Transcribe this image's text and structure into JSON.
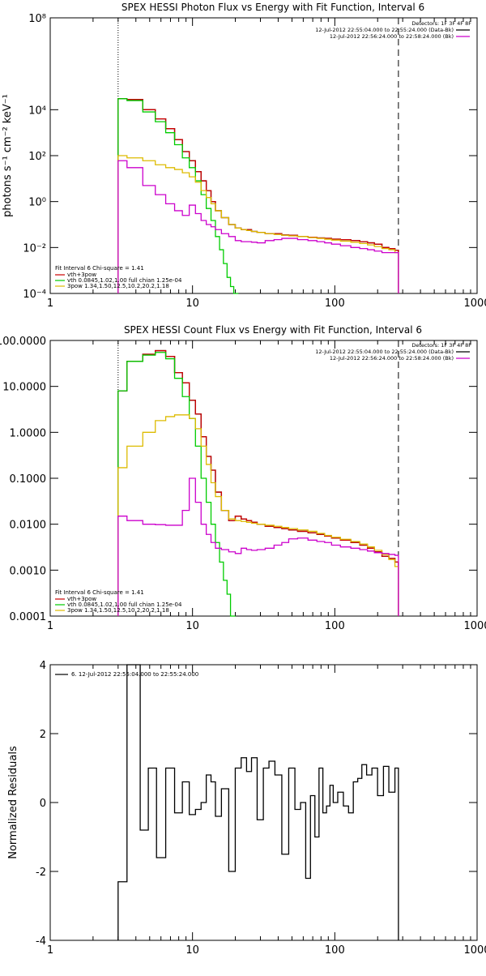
{
  "chart_data": [
    {
      "type": "line",
      "title": "SPEX HESSI Photon Flux vs Energy with Fit Function, Interval 6",
      "xlabel": "",
      "ylabel": "photons s⁻¹ cm⁻² keV⁻¹",
      "xscale": "log",
      "yscale": "log",
      "xlim": [
        1,
        1000
      ],
      "ylim": [
        0.0001,
        100000000
      ],
      "x_ticks": [
        1,
        10,
        100,
        1000
      ],
      "x_tick_labels": [
        "1",
        "10",
        "100",
        "1000"
      ],
      "y_ticks": [
        0.0001,
        0.01,
        1,
        100,
        10000,
        100000000
      ],
      "y_tick_labels": [
        "10⁻⁴",
        "10⁻²",
        "10⁰",
        "10²",
        "10⁴",
        "10⁸"
      ],
      "vlines": [
        {
          "x": 3.0,
          "style": "dotted"
        },
        {
          "x": 280,
          "style": "dashed"
        }
      ],
      "annotations": [
        "Detectors: 1F 3F 4F 8F",
        "12-Jul-2012 22:55:04.000 to 22:55:24.000 (Data-Bk)",
        "12-Jul-2012 22:56:24.000 to 22:58:24.000 (Bk)"
      ],
      "annotation_colors": [
        "#000000",
        "#000000",
        "#cc00cc"
      ],
      "legend": [
        "Fit Interval 6   Chi-square = 1.41",
        "vth+3pow",
        "vth 0.0845,1.02,1.00  full chian 1.25e-04",
        "3pow 1.34,1.50,12.5,10.2,20.2,1.18"
      ],
      "legend_colors": [
        "#000000",
        "#cc0000",
        "#00cc00",
        "#ddbb00"
      ],
      "legend_placement": "bottom-left",
      "series": [
        {
          "name": "Data-Bk",
          "color": "#000000",
          "x": [
            3,
            4,
            5,
            6,
            7,
            8,
            9,
            10,
            11,
            12,
            13,
            14,
            15,
            17,
            19,
            21,
            23,
            25,
            27,
            30,
            35,
            40,
            45,
            50,
            60,
            70,
            80,
            90,
            100,
            120,
            140,
            160,
            180,
            200,
            230,
            250,
            280
          ],
          "y": [
            30000,
            28000,
            10000,
            4000,
            1500,
            500,
            150,
            60,
            20,
            8,
            3,
            1,
            0.4,
            0.2,
            0.1,
            0.07,
            0.06,
            0.06,
            0.05,
            0.045,
            0.04,
            0.04,
            0.035,
            0.034,
            0.03,
            0.028,
            0.026,
            0.025,
            0.023,
            0.022,
            0.02,
            0.018,
            0.016,
            0.014,
            0.01,
            0.009,
            0.0075
          ]
        },
        {
          "name": "vth+3pow",
          "color": "#cc0000",
          "x": [
            3,
            4,
            5,
            6,
            7,
            8,
            9,
            10,
            11,
            12,
            13,
            14,
            15,
            17,
            19,
            21,
            23,
            25,
            27,
            30,
            35,
            40,
            45,
            50,
            60,
            70,
            80,
            90,
            100,
            120,
            140,
            160,
            180,
            200,
            230,
            250,
            280
          ],
          "y": [
            30000,
            28000,
            10000,
            4000,
            1500,
            500,
            150,
            60,
            20,
            8,
            3,
            1,
            0.4,
            0.2,
            0.1,
            0.07,
            0.06,
            0.06,
            0.05,
            0.045,
            0.04,
            0.04,
            0.035,
            0.034,
            0.03,
            0.028,
            0.026,
            0.025,
            0.023,
            0.022,
            0.02,
            0.018,
            0.016,
            0.014,
            0.01,
            0.009,
            0.0075
          ]
        },
        {
          "name": "vth",
          "color": "#00cc00",
          "x": [
            3,
            4,
            5,
            6,
            7,
            8,
            9,
            10,
            11,
            12,
            13,
            14,
            15,
            16,
            17,
            18,
            19,
            20,
            21
          ],
          "y": [
            30000,
            25000,
            8000,
            3000,
            1000,
            300,
            80,
            30,
            8,
            2,
            0.5,
            0.15,
            0.03,
            0.008,
            0.002,
            0.0005,
            0.0002,
            0.0001,
            0.0001
          ]
        },
        {
          "name": "3pow",
          "color": "#ddbb00",
          "x": [
            3,
            4,
            5,
            6,
            7,
            8,
            9,
            10,
            11,
            12,
            13,
            14,
            15,
            17,
            19,
            21,
            23,
            25,
            27,
            30,
            35,
            40,
            45,
            50,
            60,
            70,
            80,
            90,
            100,
            120,
            140,
            160,
            180,
            200,
            230,
            250,
            280
          ],
          "y": [
            100,
            80,
            60,
            40,
            30,
            25,
            18,
            12,
            7,
            3,
            1.5,
            0.8,
            0.4,
            0.2,
            0.1,
            0.07,
            0.06,
            0.055,
            0.05,
            0.045,
            0.04,
            0.037,
            0.034,
            0.032,
            0.03,
            0.027,
            0.025,
            0.023,
            0.021,
            0.019,
            0.017,
            0.015,
            0.013,
            0.011,
            0.009,
            0.008,
            0.006
          ]
        },
        {
          "name": "Bk",
          "color": "#cc00cc",
          "x": [
            3,
            4,
            5,
            6,
            7,
            8,
            9,
            10,
            11,
            12,
            13,
            14,
            15,
            17,
            19,
            21,
            23,
            25,
            27,
            30,
            35,
            40,
            45,
            50,
            60,
            70,
            80,
            90,
            100,
            120,
            140,
            160,
            180,
            200,
            230,
            250,
            280
          ],
          "y": [
            60,
            30,
            5,
            2,
            0.8,
            0.4,
            0.25,
            0.7,
            0.3,
            0.15,
            0.1,
            0.08,
            0.06,
            0.04,
            0.03,
            0.02,
            0.018,
            0.018,
            0.017,
            0.016,
            0.02,
            0.022,
            0.025,
            0.025,
            0.022,
            0.02,
            0.018,
            0.016,
            0.014,
            0.012,
            0.01,
            0.009,
            0.008,
            0.007,
            0.006,
            0.006,
            0.006
          ]
        }
      ]
    },
    {
      "type": "line",
      "title": "SPEX HESSI Count Flux vs Energy with Fit Function, Interval 6",
      "xlabel": "",
      "ylabel": "",
      "xscale": "log",
      "yscale": "log",
      "xlim": [
        1,
        1000
      ],
      "ylim": [
        0.0001,
        100
      ],
      "x_ticks": [
        1,
        10,
        100,
        1000
      ],
      "x_tick_labels": [
        "1",
        "10",
        "100",
        "1000"
      ],
      "y_ticks": [
        0.0001,
        0.001,
        0.01,
        0.1,
        1,
        10,
        100
      ],
      "y_tick_labels": [
        "0.0001",
        "0.0010",
        "0.0100",
        "0.1000",
        "1.0000",
        "10.0000",
        "100.0000"
      ],
      "vlines": [
        {
          "x": 3.0,
          "style": "dotted"
        },
        {
          "x": 280,
          "style": "dashed"
        }
      ],
      "annotations": [
        "Detectors: 1F 3F 4F 8F",
        "12-Jul-2012 22:55:04.000 to 22:55:24.000 (Data-Bk)",
        "12-Jul-2012 22:56:24.000 to 22:58:24.000 (Bk)"
      ],
      "annotation_colors": [
        "#000000",
        "#000000",
        "#cc00cc"
      ],
      "legend": [
        "Fit Interval 6   Chi-square = 1.41",
        "vth+3pow",
        "vth 0.0845,1.02,1.00  full chian 1.25e-04",
        "3pow 1.34,1.50,12.5,10.2,20.2,1.18"
      ],
      "legend_colors": [
        "#000000",
        "#cc0000",
        "#00cc00",
        "#ddbb00"
      ],
      "legend_placement": "bottom-left",
      "series": [
        {
          "name": "Data-Bk",
          "color": "#000000",
          "x": [
            3,
            4,
            5,
            6,
            7,
            8,
            9,
            10,
            11,
            12,
            13,
            14,
            15,
            17,
            19,
            21,
            23,
            25,
            27,
            30,
            35,
            40,
            45,
            50,
            60,
            70,
            80,
            90,
            100,
            120,
            140,
            160,
            180,
            200,
            230,
            250,
            280
          ],
          "y": [
            8,
            35,
            50,
            60,
            45,
            20,
            12,
            5,
            2.5,
            0.8,
            0.3,
            0.15,
            0.05,
            0.02,
            0.012,
            0.015,
            0.013,
            0.012,
            0.011,
            0.01,
            0.009,
            0.0085,
            0.008,
            0.0075,
            0.007,
            0.0065,
            0.006,
            0.0055,
            0.005,
            0.0045,
            0.004,
            0.0035,
            0.003,
            0.0025,
            0.002,
            0.0018,
            0.0015
          ]
        },
        {
          "name": "vth+3pow",
          "color": "#cc0000",
          "x": [
            3,
            4,
            5,
            6,
            7,
            8,
            9,
            10,
            11,
            12,
            13,
            14,
            15,
            17,
            19,
            21,
            23,
            25,
            27,
            30,
            35,
            40,
            45,
            50,
            60,
            70,
            80,
            90,
            100,
            120,
            140,
            160,
            180,
            200,
            230,
            250,
            280
          ],
          "y": [
            8,
            35,
            50,
            60,
            45,
            20,
            12,
            5,
            2.5,
            0.8,
            0.3,
            0.15,
            0.05,
            0.02,
            0.012,
            0.015,
            0.013,
            0.012,
            0.011,
            0.01,
            0.009,
            0.0085,
            0.008,
            0.0075,
            0.007,
            0.0065,
            0.006,
            0.0055,
            0.005,
            0.0045,
            0.004,
            0.0035,
            0.003,
            0.0025,
            0.002,
            0.0018,
            0.0015
          ]
        },
        {
          "name": "vth",
          "color": "#00cc00",
          "x": [
            3,
            4,
            5,
            6,
            7,
            8,
            9,
            10,
            11,
            12,
            13,
            14,
            15,
            16,
            17,
            18,
            19,
            20
          ],
          "y": [
            8,
            35,
            48,
            55,
            40,
            15,
            6,
            2,
            0.5,
            0.1,
            0.03,
            0.01,
            0.004,
            0.0015,
            0.0006,
            0.0003,
            0.0001,
            0.0001
          ]
        },
        {
          "name": "3pow",
          "color": "#ddbb00",
          "x": [
            3,
            4,
            5,
            6,
            7,
            8,
            9,
            10,
            11,
            12,
            13,
            14,
            15,
            17,
            19,
            21,
            23,
            25,
            27,
            30,
            35,
            40,
            45,
            50,
            60,
            70,
            80,
            90,
            100,
            120,
            140,
            160,
            180,
            200,
            230,
            250,
            280
          ],
          "y": [
            0.17,
            0.5,
            1.0,
            1.8,
            2.2,
            2.4,
            2.4,
            2.0,
            1.2,
            0.5,
            0.2,
            0.08,
            0.04,
            0.02,
            0.013,
            0.012,
            0.0115,
            0.011,
            0.0105,
            0.01,
            0.0095,
            0.009,
            0.0085,
            0.008,
            0.0075,
            0.007,
            0.0063,
            0.0057,
            0.0052,
            0.0047,
            0.0042,
            0.0037,
            0.0032,
            0.0027,
            0.0022,
            0.0017,
            0.0012
          ]
        },
        {
          "name": "Bk",
          "color": "#cc00cc",
          "x": [
            3,
            4,
            5,
            6,
            7,
            8,
            9,
            10,
            11,
            12,
            13,
            14,
            15,
            17,
            19,
            21,
            23,
            25,
            27,
            30,
            35,
            40,
            45,
            50,
            60,
            70,
            80,
            90,
            100,
            120,
            140,
            160,
            180,
            200,
            230,
            250,
            280
          ],
          "y": [
            0.015,
            0.012,
            0.01,
            0.0098,
            0.0095,
            0.0095,
            0.02,
            0.1,
            0.03,
            0.01,
            0.006,
            0.004,
            0.003,
            0.0028,
            0.0025,
            0.0023,
            0.003,
            0.0028,
            0.0027,
            0.0028,
            0.003,
            0.0035,
            0.004,
            0.0048,
            0.005,
            0.0045,
            0.0042,
            0.004,
            0.0035,
            0.0032,
            0.003,
            0.0028,
            0.0026,
            0.0024,
            0.0023,
            0.0022,
            0.0021
          ]
        }
      ]
    },
    {
      "type": "line",
      "title": "",
      "xlabel": "",
      "ylabel": "Normalized Residuals",
      "xscale": "log",
      "yscale": "linear",
      "xlim": [
        1,
        1000
      ],
      "ylim": [
        -4,
        4
      ],
      "x_ticks": [
        1,
        10,
        100,
        1000
      ],
      "x_tick_labels": [
        "1",
        "10",
        "100",
        "1000"
      ],
      "y_ticks": [
        -4,
        -2,
        0,
        2,
        4
      ],
      "y_tick_labels": [
        "-4",
        "-2",
        "0",
        "2",
        "4"
      ],
      "legend": [
        "6. 12-Jul-2012 22:55:04.000 to 22:55:24.000"
      ],
      "legend_colors": [
        "#000000"
      ],
      "legend_placement": "top-left",
      "series": [
        {
          "name": "6. 12-Jul-2012 22:55:04.000 to 22:55:24.000",
          "color": "#000000",
          "x": [
            3,
            4,
            4.6,
            5.2,
            6,
            7,
            8,
            9,
            10,
            11,
            12,
            13,
            14,
            15,
            17,
            19,
            21,
            23,
            25,
            27,
            30,
            33,
            36,
            40,
            45,
            50,
            55,
            60,
            65,
            70,
            75,
            80,
            85,
            90,
            95,
            100,
            110,
            120,
            130,
            140,
            150,
            160,
            175,
            190,
            210,
            230,
            250,
            280
          ],
          "y": [
            -2.3,
            4,
            -0.8,
            1.0,
            -1.6,
            1.0,
            -0.3,
            0.6,
            -0.35,
            -0.2,
            0.0,
            0.8,
            0.6,
            -0.4,
            0.4,
            -2.0,
            1.0,
            1.3,
            0.9,
            1.3,
            -0.5,
            1.0,
            1.2,
            0.8,
            -1.5,
            1.0,
            -0.2,
            0.0,
            -2.2,
            0.2,
            -1.0,
            1.0,
            -0.3,
            -0.1,
            0.5,
            0.0,
            0.3,
            -0.1,
            -0.3,
            0.6,
            0.7,
            1.1,
            0.8,
            1.0,
            0.2,
            1.05,
            0.3,
            1.0
          ]
        }
      ]
    }
  ]
}
